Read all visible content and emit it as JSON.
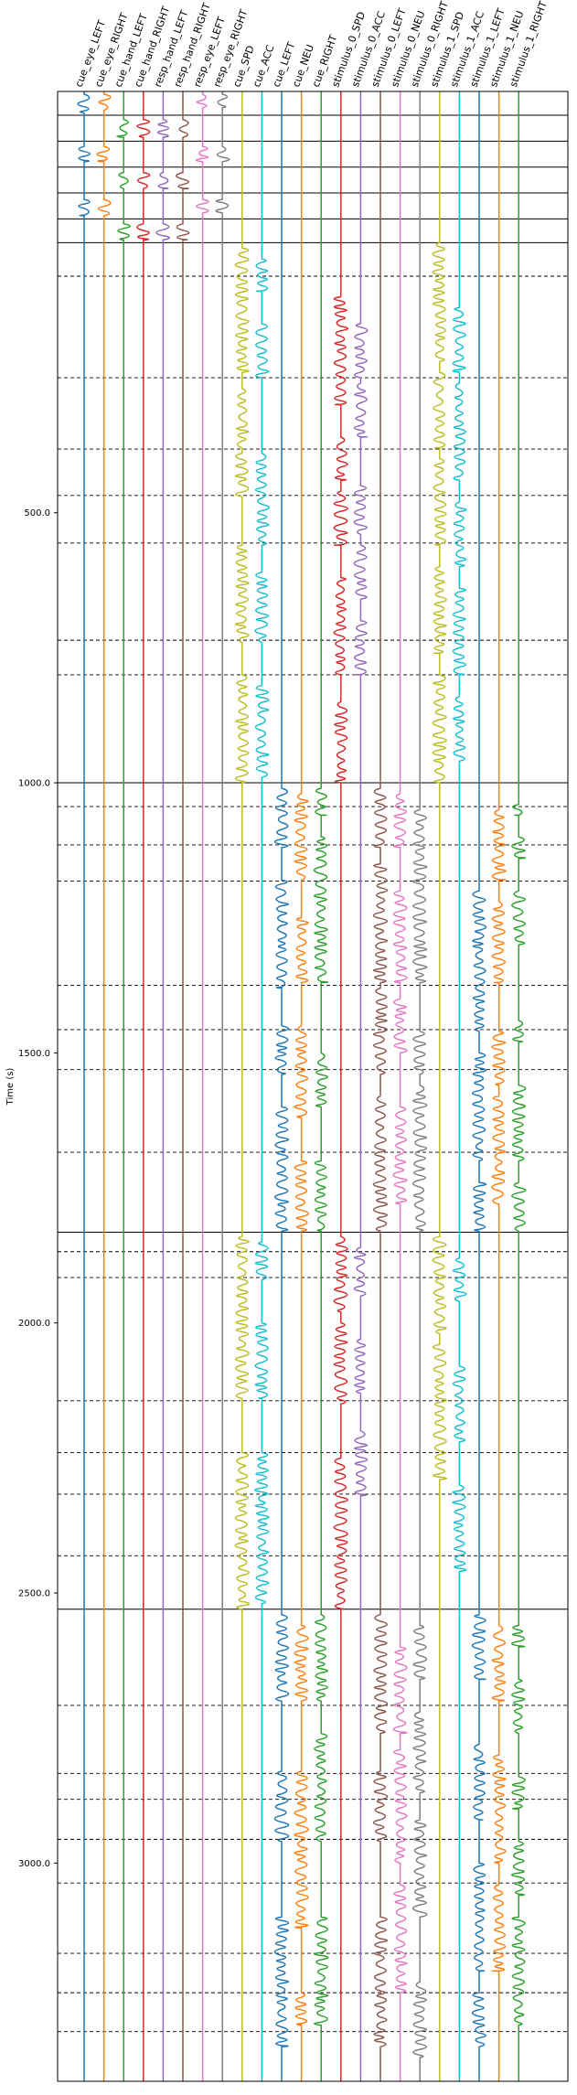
{
  "chart_data": {
    "type": "line",
    "title": "",
    "xlabel": "",
    "ylabel": "Time (s)",
    "ylim": [
      3404,
      -280
    ],
    "yticks": [
      500,
      1000,
      1500,
      2000,
      2500,
      3000
    ],
    "ytick_labels": [
      "500.0",
      "1000.0",
      "1500.0",
      "2000.0",
      "2500.0",
      "3000.0"
    ],
    "grid": false,
    "channels": [
      {
        "name": "cue_eye_LEFT",
        "color": "#1f77b4"
      },
      {
        "name": "cue_eye_RIGHT",
        "color": "#ff7f0e"
      },
      {
        "name": "cue_hand_LEFT",
        "color": "#2ca02c"
      },
      {
        "name": "cue_hand_RIGHT",
        "color": "#d62728"
      },
      {
        "name": "resp_hand_LEFT",
        "color": "#9467bd"
      },
      {
        "name": "resp_hand_RIGHT",
        "color": "#8c564b"
      },
      {
        "name": "resp_eye_LEFT",
        "color": "#e377c2"
      },
      {
        "name": "resp_eye_RIGHT",
        "color": "#7f7f7f"
      },
      {
        "name": "cue_SPD",
        "color": "#bcbd22"
      },
      {
        "name": "cue_ACC",
        "color": "#17becf"
      },
      {
        "name": "cue_LEFT",
        "color": "#1f77b4"
      },
      {
        "name": "cue_NEU",
        "color": "#ff7f0e"
      },
      {
        "name": "cue_RIGHT",
        "color": "#2ca02c"
      },
      {
        "name": "stimulus_0_SPD",
        "color": "#d62728"
      },
      {
        "name": "stimulus_0_ACC",
        "color": "#9467bd"
      },
      {
        "name": "stimulus_0_LEFT",
        "color": "#8c564b"
      },
      {
        "name": "stimulus_0_NEU",
        "color": "#e377c2"
      },
      {
        "name": "stimulus_0_RIGHT",
        "color": "#7f7f7f"
      },
      {
        "name": "stimulus_1_SPD",
        "color": "#bcbd22"
      },
      {
        "name": "stimulus_1_ACC",
        "color": "#17becf"
      },
      {
        "name": "stimulus_1_LEFT",
        "color": "#1f77b4"
      },
      {
        "name": "stimulus_1_NEU",
        "color": "#ff7f0e"
      },
      {
        "name": "stimulus_1_RIGHT",
        "color": "#2ca02c"
      }
    ],
    "block_boundaries": [
      -280,
      -236,
      -188,
      -140,
      -92,
      -44,
      0,
      1000,
      1832,
      2530
    ],
    "trial_boundaries": [
      62,
      250,
      382,
      468,
      556,
      736,
      800,
      1044,
      1115,
      1182,
      1375,
      1457,
      1531,
      1684,
      1868,
      1916,
      2144,
      2240,
      2317,
      2431,
      2708,
      2834,
      2882,
      2956,
      3037,
      3167,
      3240,
      3312
    ]
  }
}
